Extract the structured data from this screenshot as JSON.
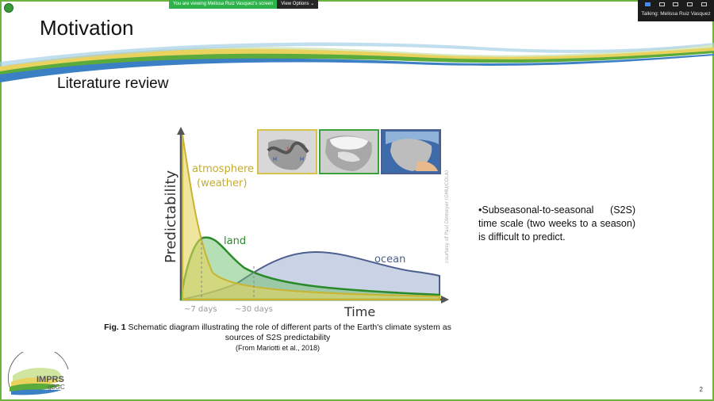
{
  "zoom": {
    "share_banner_text": "You are viewing Melissa Ruiz Vasquez's screen",
    "view_options_label": "View Options ⌄",
    "talking_label": "Talking: Melissa Ruiz Vasquez"
  },
  "slide": {
    "title": "Motivation",
    "subtitle": "Literature review",
    "bullet": "Subseasonal-to-seasonal (S2S) time scale (two weeks to a season) is difficult to predict.",
    "caption_label": "Fig. 1",
    "caption_text": " Schematic diagram illustrating the role of different parts of the Earth's climate system as sources of S2S predictability",
    "caption_source": "(From Mariotti et al., 2018)",
    "page_number": "2"
  },
  "figure": {
    "y_axis_label": "Predictability",
    "x_axis_label": "Time",
    "atmosphere_label_1": "atmosphere",
    "atmosphere_label_2": "(weather)",
    "land_label": "land",
    "ocean_label": "ocean",
    "tick_7": "~7 days",
    "tick_30": "~30 days",
    "credit": "courtesy of Paul Dirmeyer (GMU/COLA)",
    "colors": {
      "atmosphere": "#d7c24a",
      "land": "#3aa23a",
      "ocean": "#4c5f8c"
    }
  },
  "logo": {
    "line1": "IMPRS",
    "line2": "gBGC"
  }
}
